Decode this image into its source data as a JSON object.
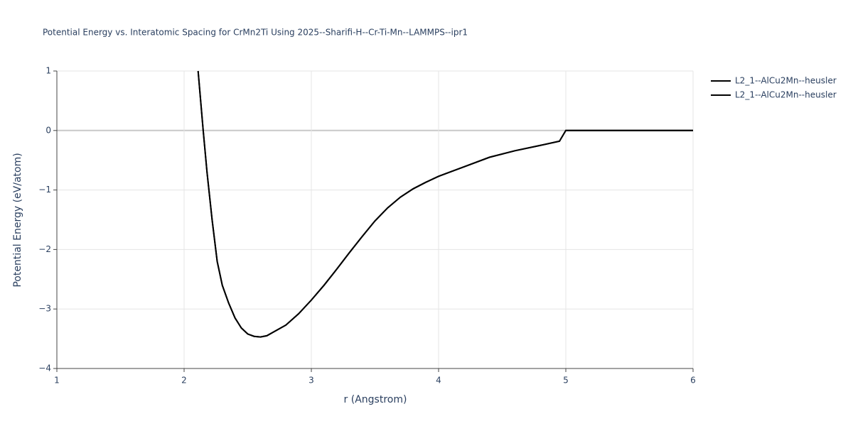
{
  "chart_data": {
    "type": "line",
    "title": "Potential Energy vs. Interatomic Spacing for CrMn2Ti Using 2025--Sharifi-H--Cr-Ti-Mn--LAMMPS--ipr1",
    "x_label": "r (Angstrom)",
    "y_label": "Potential Energy (eV/atom)",
    "x": [
      2.11,
      2.15,
      2.18,
      2.22,
      2.26,
      2.3,
      2.35,
      2.4,
      2.45,
      2.5,
      2.55,
      2.6,
      2.65,
      2.7,
      2.8,
      2.9,
      3.0,
      3.1,
      3.2,
      3.3,
      3.4,
      3.5,
      3.6,
      3.7,
      3.8,
      3.9,
      4.0,
      4.2,
      4.4,
      4.6,
      4.8,
      4.95,
      5.0,
      6.0
    ],
    "series": [
      {
        "name": "L2_1--AlCu2Mn--heusler",
        "color": "#000000",
        "values": [
          1,
          0,
          -0.7,
          -1.5,
          -2.2,
          -2.6,
          -2.9,
          -3.15,
          -3.32,
          -3.42,
          -3.46,
          -3.47,
          -3.45,
          -3.39,
          -3.27,
          -3.08,
          -2.85,
          -2.6,
          -2.33,
          -2.05,
          -1.78,
          -1.52,
          -1.3,
          -1.12,
          -0.98,
          -0.87,
          -0.77,
          -0.61,
          -0.45,
          -0.34,
          -0.25,
          -0.18,
          0,
          0
        ]
      },
      {
        "name": "L2_1--AlCu2Mn--heusler",
        "color": "#000000",
        "values": [
          1,
          0,
          -0.7,
          -1.5,
          -2.2,
          -2.6,
          -2.9,
          -3.15,
          -3.32,
          -3.42,
          -3.46,
          -3.47,
          -3.45,
          -3.39,
          -3.27,
          -3.08,
          -2.85,
          -2.6,
          -2.33,
          -2.05,
          -1.78,
          -1.52,
          -1.3,
          -1.12,
          -0.98,
          -0.87,
          -0.77,
          -0.61,
          -0.45,
          -0.34,
          -0.25,
          -0.18,
          0,
          0
        ]
      }
    ],
    "xlim": [
      1,
      6
    ],
    "xticks": [
      1,
      2,
      3,
      4,
      5,
      6
    ],
    "ylim": [
      -4,
      1
    ],
    "yticks": [
      {
        "value": -4,
        "label": "−4"
      },
      {
        "value": -3,
        "label": "−3"
      },
      {
        "value": -2,
        "label": "−2"
      },
      {
        "value": -1,
        "label": "−1"
      },
      0,
      1
    ],
    "grid": true,
    "legend": "top-right"
  }
}
